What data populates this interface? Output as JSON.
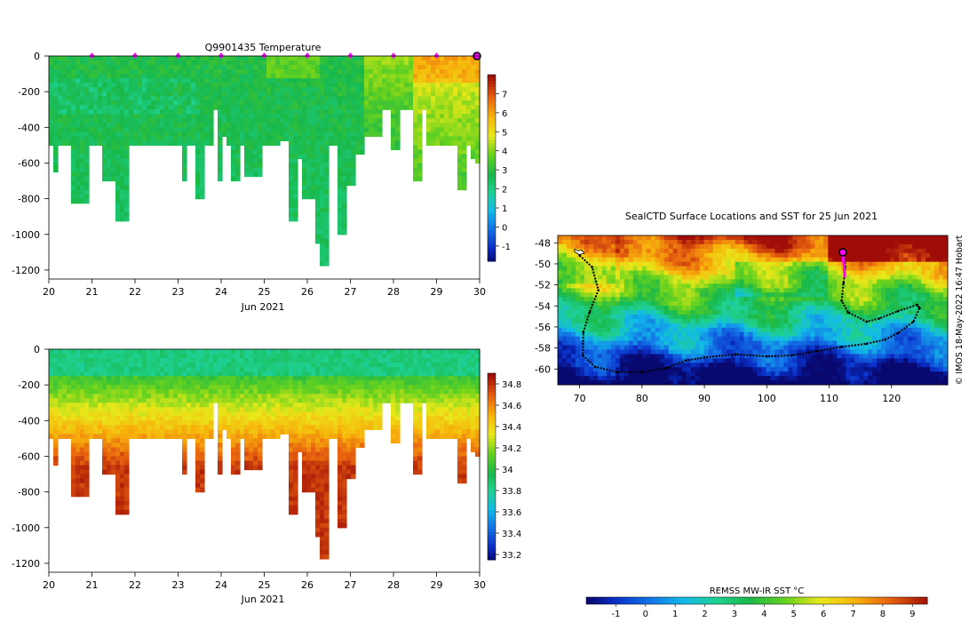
{
  "chart_data": [
    {
      "type": "heatmap",
      "title": "Q9901435  Temperature",
      "xlabel": "Jun 2021",
      "ylabel": "",
      "x_ticks": [
        "20",
        "21",
        "22",
        "23",
        "24",
        "25",
        "26",
        "27",
        "28",
        "29",
        "30"
      ],
      "xlim": [
        20,
        30
      ],
      "y_ticks": [
        0,
        -200,
        -400,
        -600,
        -800,
        -1000,
        -1200
      ],
      "ylim": [
        -1250,
        0
      ],
      "grid": false,
      "colorbar": {
        "ticks": [
          7,
          6,
          5,
          4,
          3,
          2,
          1,
          0,
          -1
        ],
        "range": [
          -1.8,
          8
        ]
      },
      "profile_markers_day": [
        21,
        22,
        23,
        24,
        25,
        26,
        27,
        28,
        29
      ],
      "current_position_day": 30,
      "marker_color": "#ff00ff"
    },
    {
      "type": "heatmap",
      "title": "",
      "xlabel": "Jun 2021",
      "ylabel": "",
      "x_ticks": [
        "20",
        "21",
        "22",
        "23",
        "24",
        "25",
        "26",
        "27",
        "28",
        "29",
        "30"
      ],
      "xlim": [
        20,
        30
      ],
      "y_ticks": [
        0,
        -200,
        -400,
        -600,
        -800,
        -1000,
        -1200
      ],
      "ylim": [
        -1250,
        0
      ],
      "grid": false,
      "colorbar": {
        "ticks": [
          "34.8",
          "34.6",
          "34.4",
          "34.2",
          "34",
          "33.8",
          "33.6",
          "33.4",
          "33.2"
        ],
        "range": [
          33.15,
          34.9
        ]
      }
    },
    {
      "type": "heatmap",
      "title": "SealCTD Surface Locations and SST for 25 Jun 2021",
      "x_ticks": [
        "70",
        "80",
        "90",
        "100",
        "110",
        "120"
      ],
      "xlim": [
        66.5,
        129
      ],
      "y_ticks": [
        "-48",
        "-50",
        "-52",
        "-54",
        "-56",
        "-58",
        "-60"
      ],
      "ylim": [
        -61.5,
        -47.3
      ],
      "colorbar": {
        "label": "REMSS MW-IR SST °C",
        "ticks": [
          "-1",
          "0",
          "1",
          "2",
          "3",
          "4",
          "5",
          "6",
          "7",
          "8",
          "9"
        ],
        "range": [
          -2,
          9.5
        ],
        "orientation": "horizontal"
      },
      "credit": "© IMOS 18-May-2022 16:47 Hobart",
      "track_points": [
        [
          70,
          -49.2
        ],
        [
          72,
          -50.3
        ],
        [
          73,
          -52.5
        ],
        [
          71.6,
          -54.6
        ],
        [
          70.6,
          -56.5
        ],
        [
          70.5,
          -58.7
        ],
        [
          72.5,
          -59.8
        ],
        [
          76,
          -60.3
        ],
        [
          80,
          -60.3
        ],
        [
          84,
          -59.9
        ],
        [
          87,
          -59.2
        ],
        [
          90,
          -58.9
        ],
        [
          95,
          -58.6
        ],
        [
          100,
          -58.8
        ],
        [
          104,
          -58.7
        ],
        [
          108,
          -58.3
        ],
        [
          112,
          -57.9
        ],
        [
          116,
          -57.6
        ],
        [
          119,
          -57.2
        ],
        [
          121,
          -56.6
        ],
        [
          123.5,
          -55.5
        ],
        [
          124.5,
          -54.2
        ],
        [
          124.1,
          -53.9
        ],
        [
          121,
          -54.5
        ],
        [
          118,
          -55.2
        ],
        [
          116,
          -55.5
        ],
        [
          113,
          -54.6
        ],
        [
          112,
          -53.5
        ],
        [
          112.3,
          -51.8
        ],
        [
          112.6,
          -50.3
        ],
        [
          112.5,
          -49.6
        ]
      ],
      "current_track": [
        [
          112.5,
          -51.3
        ],
        [
          112.4,
          -50.2
        ],
        [
          112.2,
          -49.2
        ]
      ],
      "current_position": [
        112.2,
        -48.9
      ]
    }
  ]
}
